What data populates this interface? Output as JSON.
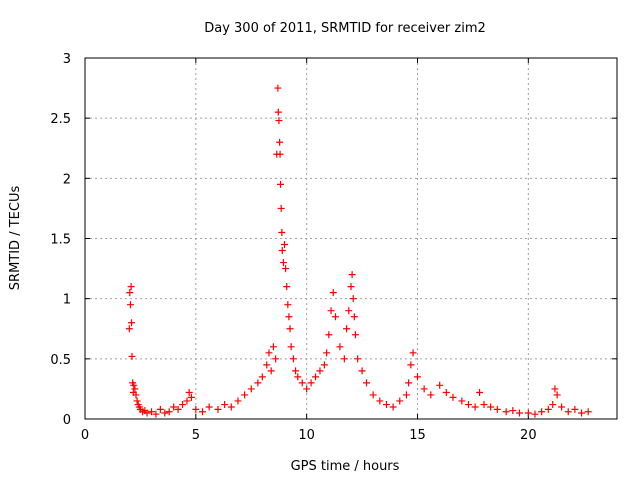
{
  "chart_data": {
    "type": "scatter",
    "title": "Day 300 of 2011, SRMTID for receiver zim2",
    "xlabel": "GPS time / hours",
    "ylabel": "SRMTID / TECUs",
    "xlim": [
      0,
      24
    ],
    "ylim": [
      0,
      3
    ],
    "xticks": [
      0,
      5,
      10,
      15,
      20
    ],
    "xtick_labels": [
      "0",
      "5",
      "10",
      "15",
      "20"
    ],
    "yticks": [
      0,
      0.5,
      1,
      1.5,
      2,
      2.5,
      3
    ],
    "ytick_labels": [
      "0",
      "0.5",
      "1",
      "1.5",
      "2",
      "2.5",
      "3"
    ],
    "grid": true,
    "marker": "+",
    "color": "#ff0000",
    "series": [
      {
        "name": "zim2",
        "x": [
          2.0,
          2.02,
          2.05,
          2.08,
          2.1,
          2.12,
          2.15,
          2.18,
          2.2,
          2.25,
          2.3,
          2.35,
          2.4,
          2.45,
          2.5,
          2.6,
          2.7,
          2.8,
          3.0,
          3.2,
          3.4,
          3.6,
          3.8,
          4.0,
          4.2,
          4.4,
          4.6,
          4.7,
          4.8,
          5.0,
          5.3,
          5.6,
          6.0,
          6.3,
          6.6,
          6.9,
          7.2,
          7.5,
          7.8,
          8.0,
          8.2,
          8.3,
          8.4,
          8.5,
          8.6,
          8.65,
          8.7,
          8.72,
          8.75,
          8.78,
          8.8,
          8.82,
          8.85,
          8.88,
          8.9,
          8.95,
          9.0,
          9.05,
          9.1,
          9.15,
          9.2,
          9.25,
          9.3,
          9.4,
          9.5,
          9.6,
          9.8,
          10.0,
          10.2,
          10.4,
          10.6,
          10.8,
          10.9,
          11.0,
          11.1,
          11.2,
          11.3,
          11.5,
          11.7,
          11.8,
          11.9,
          12.0,
          12.05,
          12.1,
          12.15,
          12.2,
          12.3,
          12.5,
          12.7,
          13.0,
          13.3,
          13.6,
          13.9,
          14.2,
          14.5,
          14.6,
          14.7,
          14.8,
          15.0,
          15.3,
          15.6,
          16.0,
          16.3,
          16.6,
          17.0,
          17.3,
          17.6,
          17.8,
          18.0,
          18.3,
          18.6,
          19.0,
          19.3,
          19.6,
          20.0,
          20.3,
          20.6,
          20.9,
          21.1,
          21.2,
          21.3,
          21.5,
          21.8,
          22.1,
          22.4,
          22.7
        ],
        "y": [
          0.75,
          1.05,
          0.95,
          1.1,
          0.8,
          0.52,
          0.3,
          0.22,
          0.28,
          0.25,
          0.2,
          0.15,
          0.12,
          0.1,
          0.08,
          0.06,
          0.07,
          0.05,
          0.06,
          0.04,
          0.08,
          0.05,
          0.06,
          0.1,
          0.08,
          0.12,
          0.15,
          0.22,
          0.18,
          0.08,
          0.06,
          0.1,
          0.08,
          0.12,
          0.1,
          0.15,
          0.2,
          0.25,
          0.3,
          0.35,
          0.45,
          0.55,
          0.4,
          0.6,
          0.5,
          2.2,
          2.75,
          2.55,
          2.48,
          2.3,
          2.2,
          1.95,
          1.75,
          1.55,
          1.4,
          1.3,
          1.45,
          1.25,
          1.1,
          0.95,
          0.85,
          0.75,
          0.6,
          0.5,
          0.4,
          0.35,
          0.3,
          0.25,
          0.3,
          0.35,
          0.4,
          0.45,
          0.55,
          0.7,
          0.9,
          1.05,
          0.85,
          0.6,
          0.5,
          0.75,
          0.9,
          1.1,
          1.2,
          1.0,
          0.85,
          0.7,
          0.5,
          0.4,
          0.3,
          0.2,
          0.15,
          0.12,
          0.1,
          0.15,
          0.2,
          0.3,
          0.45,
          0.55,
          0.35,
          0.25,
          0.2,
          0.28,
          0.22,
          0.18,
          0.15,
          0.12,
          0.1,
          0.22,
          0.12,
          0.1,
          0.08,
          0.06,
          0.07,
          0.05,
          0.05,
          0.04,
          0.06,
          0.08,
          0.12,
          0.25,
          0.2,
          0.1,
          0.06,
          0.08,
          0.05,
          0.06
        ]
      }
    ]
  }
}
